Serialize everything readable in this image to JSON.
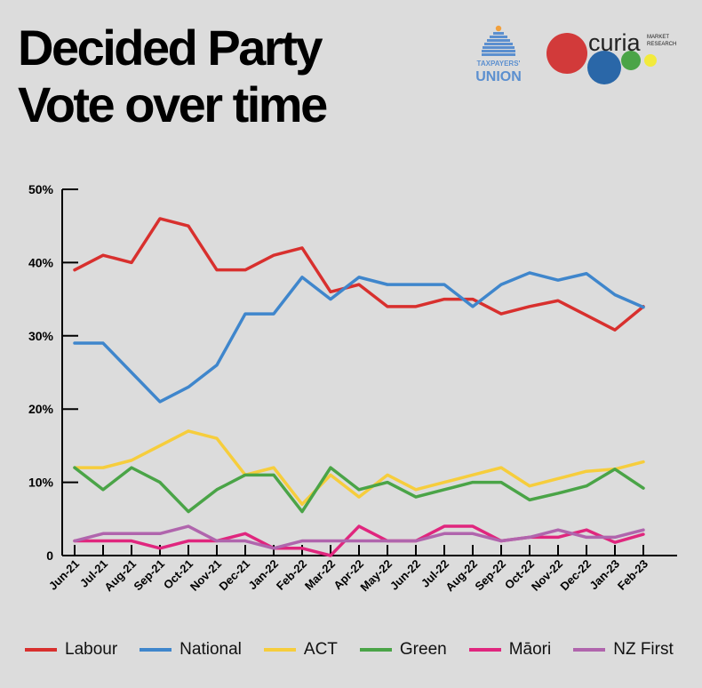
{
  "title": {
    "line1": "Decided Party",
    "line2": "Vote over time"
  },
  "logos": {
    "taxpayers_union": {
      "line1": "TAXPAYERS'",
      "line2": "UNION",
      "color": "#5b8fcf"
    },
    "curia": {
      "word": "curia",
      "sub1": "MARKET",
      "sub2": "RESEARCH"
    }
  },
  "chart_data": {
    "type": "line",
    "title": "Decided Party Vote over time",
    "xlabel": "",
    "ylabel": "",
    "ylim": [
      0,
      50
    ],
    "y_ticks": [
      "0",
      "10%",
      "20%",
      "30%",
      "40%",
      "50%"
    ],
    "grid": false,
    "legend_position": "bottom",
    "categories": [
      "Jun-21",
      "Jul-21",
      "Aug-21",
      "Sep-21",
      "Oct-21",
      "Nov-21",
      "Dec-21",
      "Jan-22",
      "Feb-22",
      "Mar-22",
      "Apr-22",
      "May-22",
      "Jun-22",
      "Jul-22",
      "Aug-22",
      "Sep-22",
      "Oct-22",
      "Nov-22",
      "Dec-22",
      "Jan-23",
      "Feb-23"
    ],
    "series": [
      {
        "name": "Labour",
        "color": "#d8302e",
        "values": [
          39,
          41,
          40,
          46,
          45,
          39,
          39,
          41,
          42,
          36,
          37,
          34,
          34,
          35,
          35,
          33,
          34,
          34.8,
          32.8,
          30.8,
          34
        ]
      },
      {
        "name": "National",
        "color": "#3f86cc",
        "values": [
          29,
          29,
          25,
          21,
          23,
          26,
          33,
          33,
          38,
          35,
          38,
          37,
          37,
          37,
          34,
          37,
          38.6,
          37.6,
          38.5,
          35.6,
          33.9
        ]
      },
      {
        "name": "ACT",
        "color": "#f6cd3c",
        "values": [
          12,
          12,
          13,
          15,
          17,
          16,
          11,
          12,
          7,
          11,
          8,
          11,
          9,
          10,
          11,
          12,
          9.5,
          10.5,
          11.5,
          11.8,
          12.8
        ]
      },
      {
        "name": "Green",
        "color": "#4aa447",
        "values": [
          12,
          9,
          12,
          10,
          6,
          9,
          11,
          11,
          6,
          12,
          9,
          10,
          8,
          9,
          10,
          10,
          7.6,
          8.5,
          9.5,
          11.8,
          9.2
        ]
      },
      {
        "name": "Māori",
        "color": "#e0267e",
        "values": [
          2,
          2,
          2,
          1,
          2,
          2,
          3,
          1,
          1,
          0,
          4,
          2,
          2,
          4,
          4,
          2,
          2.5,
          2.5,
          3.5,
          1.8,
          2.9
        ]
      },
      {
        "name": "NZ First",
        "color": "#b065ad",
        "values": [
          2,
          3,
          3,
          3,
          4,
          2,
          2,
          1,
          2,
          2,
          2,
          2,
          2,
          3,
          3,
          2,
          2.5,
          3.5,
          2.5,
          2.5,
          3.5
        ]
      }
    ]
  }
}
